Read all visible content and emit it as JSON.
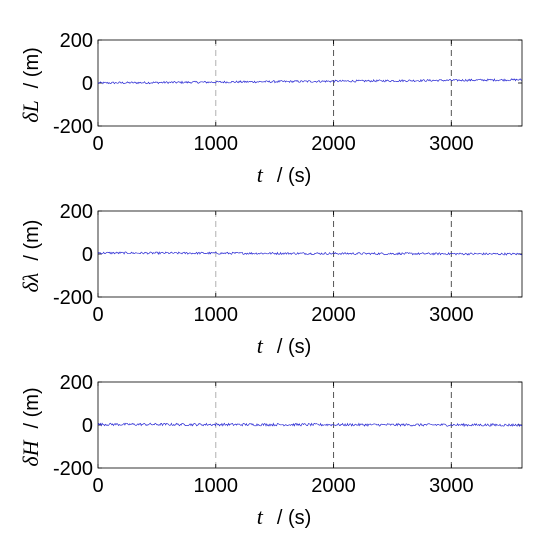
{
  "chart_data": [
    {
      "type": "line",
      "xlabel": {
        "symbol": "t",
        "unit": "/ (s)"
      },
      "ylabel": {
        "symbol": "δL",
        "unit": "/ (m)"
      },
      "xlim": [
        0,
        3600
      ],
      "ylim": [
        -200,
        200
      ],
      "xticks": [
        0,
        1000,
        2000,
        3000
      ],
      "yticks": [
        -200,
        0,
        200
      ],
      "xtick_labels": [
        "0",
        "1000",
        "2000",
        "3000"
      ],
      "ytick_labels": [
        "-200",
        "0",
        "200"
      ],
      "vlines": [
        1000,
        2000,
        3000
      ],
      "grid": false,
      "series": [
        {
          "color": "#2b2bd4",
          "start": 0,
          "end": 15,
          "noise": 5
        }
      ]
    },
    {
      "type": "line",
      "xlabel": {
        "symbol": "t",
        "unit": "/ (s)"
      },
      "ylabel": {
        "symbol": "δλ",
        "unit": "/ (m)"
      },
      "xlim": [
        0,
        3600
      ],
      "ylim": [
        -200,
        200
      ],
      "xticks": [
        0,
        1000,
        2000,
        3000
      ],
      "yticks": [
        -200,
        0,
        200
      ],
      "xtick_labels": [
        "0",
        "1000",
        "2000",
        "3000"
      ],
      "ytick_labels": [
        "-200",
        "0",
        "200"
      ],
      "vlines": [
        1000,
        2000,
        3000
      ],
      "grid": false,
      "series": [
        {
          "color": "#2b2bd4",
          "start": 5,
          "end": 0,
          "noise": 5
        }
      ]
    },
    {
      "type": "line",
      "xlabel": {
        "symbol": "t",
        "unit": "/ (s)"
      },
      "ylabel": {
        "symbol": "δH",
        "unit": "/ (m)"
      },
      "xlim": [
        0,
        3600
      ],
      "ylim": [
        -200,
        200
      ],
      "xticks": [
        0,
        1000,
        2000,
        3000
      ],
      "yticks": [
        -200,
        0,
        200
      ],
      "xtick_labels": [
        "0",
        "1000",
        "2000",
        "3000"
      ],
      "ytick_labels": [
        "-200",
        "0",
        "200"
      ],
      "vlines": [
        1000,
        2000,
        3000
      ],
      "grid": false,
      "series": [
        {
          "color": "#2b2bd4",
          "start": 3,
          "end": 0,
          "noise": 6
        }
      ]
    }
  ]
}
